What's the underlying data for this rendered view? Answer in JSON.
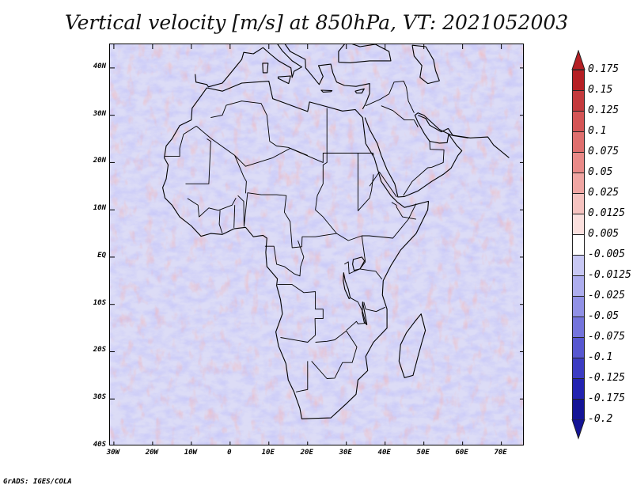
{
  "title": "Vertical velocity [m/s] at 850hPa, VT: 2021052003",
  "footer": "GrADS: IGES/COLA",
  "map": {
    "lat_labels": [
      "40N",
      "30N",
      "20N",
      "10N",
      "EQ",
      "10S",
      "20S",
      "30S",
      "40S"
    ],
    "lat_values": [
      40,
      30,
      20,
      10,
      0,
      -10,
      -20,
      -30,
      -40
    ],
    "lon_labels": [
      "30W",
      "20W",
      "10W",
      "0",
      "10E",
      "20E",
      "30E",
      "40E",
      "50E",
      "60E",
      "70E"
    ],
    "lon_values": [
      -30,
      -20,
      -10,
      0,
      10,
      20,
      30,
      40,
      50,
      60,
      70
    ],
    "lon_range": [
      -31,
      76
    ],
    "lat_range": [
      -40,
      45
    ]
  },
  "colorbar": {
    "labels": [
      "0.175",
      "0.15",
      "0.125",
      "0.1",
      "0.075",
      "0.05",
      "0.025",
      "0.0125",
      "0.005",
      "-0.005",
      "-0.0125",
      "-0.025",
      "-0.05",
      "-0.075",
      "-0.1",
      "-0.125",
      "-0.175",
      "-0.2"
    ],
    "colors": [
      "#b51f24",
      "#c43a3d",
      "#d45556",
      "#df6f6e",
      "#e98a88",
      "#f0a6a3",
      "#f6c3c0",
      "#fbe0de",
      "#ffffff",
      "#e3e3fa",
      "#c8c8f4",
      "#adadee",
      "#9191e6",
      "#7474dc",
      "#5757d0",
      "#3c3cc2",
      "#2323b0",
      "#141496"
    ]
  }
}
